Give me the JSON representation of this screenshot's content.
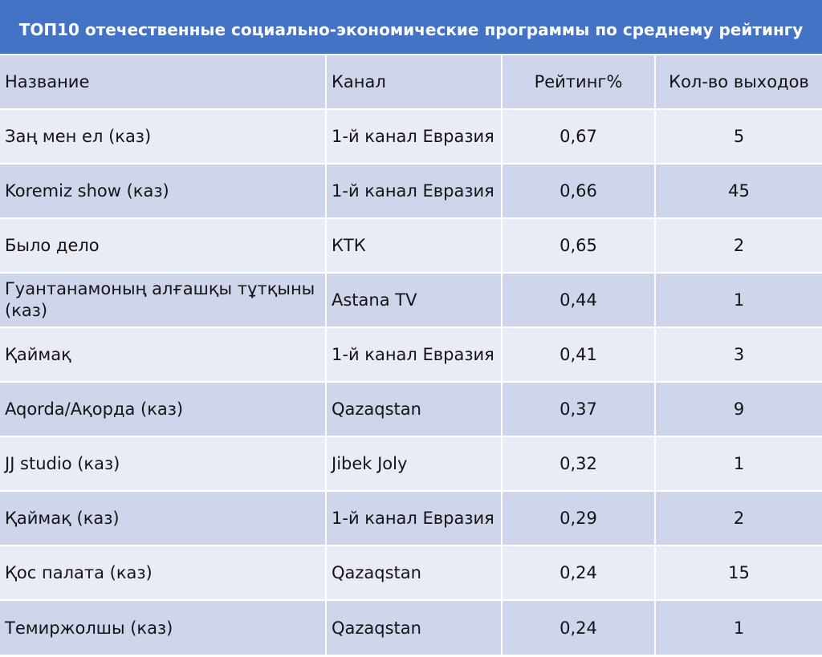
{
  "chart_data": {
    "type": "table",
    "title": "ТОП10 отечественные социально-экономические программы по среднему рейтингу",
    "columns": [
      "Название",
      "Канал",
      "Рейтинг%",
      "Кол-во выходов"
    ],
    "rows": [
      [
        "Заң мен ел (каз)",
        "1-й канал Евразия",
        "0,67",
        "5"
      ],
      [
        "Koremiz show (каз)",
        "1-й канал Евразия",
        "0,66",
        "45"
      ],
      [
        "Было дело",
        "КТК",
        "0,65",
        "2"
      ],
      [
        "Гуантанамоның алғашқы тұтқыны (каз)",
        "Astana TV",
        "0,44",
        "1"
      ],
      [
        "Қаймақ",
        "1-й канал Евразия",
        "0,41",
        "3"
      ],
      [
        "Aqorda/Ақорда (каз)",
        "Qazaqstan",
        "0,37",
        "9"
      ],
      [
        "JJ studio (каз)",
        "Jibek Joly",
        "0,32",
        "1"
      ],
      [
        "Қаймақ (каз)",
        "1-й канал Евразия",
        "0,29",
        "2"
      ],
      [
        "Қос палата (каз)",
        "Qazaqstan",
        "0,24",
        "15"
      ],
      [
        "Темиржолшы (каз)",
        "Qazaqstan",
        "0,24",
        "1"
      ]
    ]
  }
}
